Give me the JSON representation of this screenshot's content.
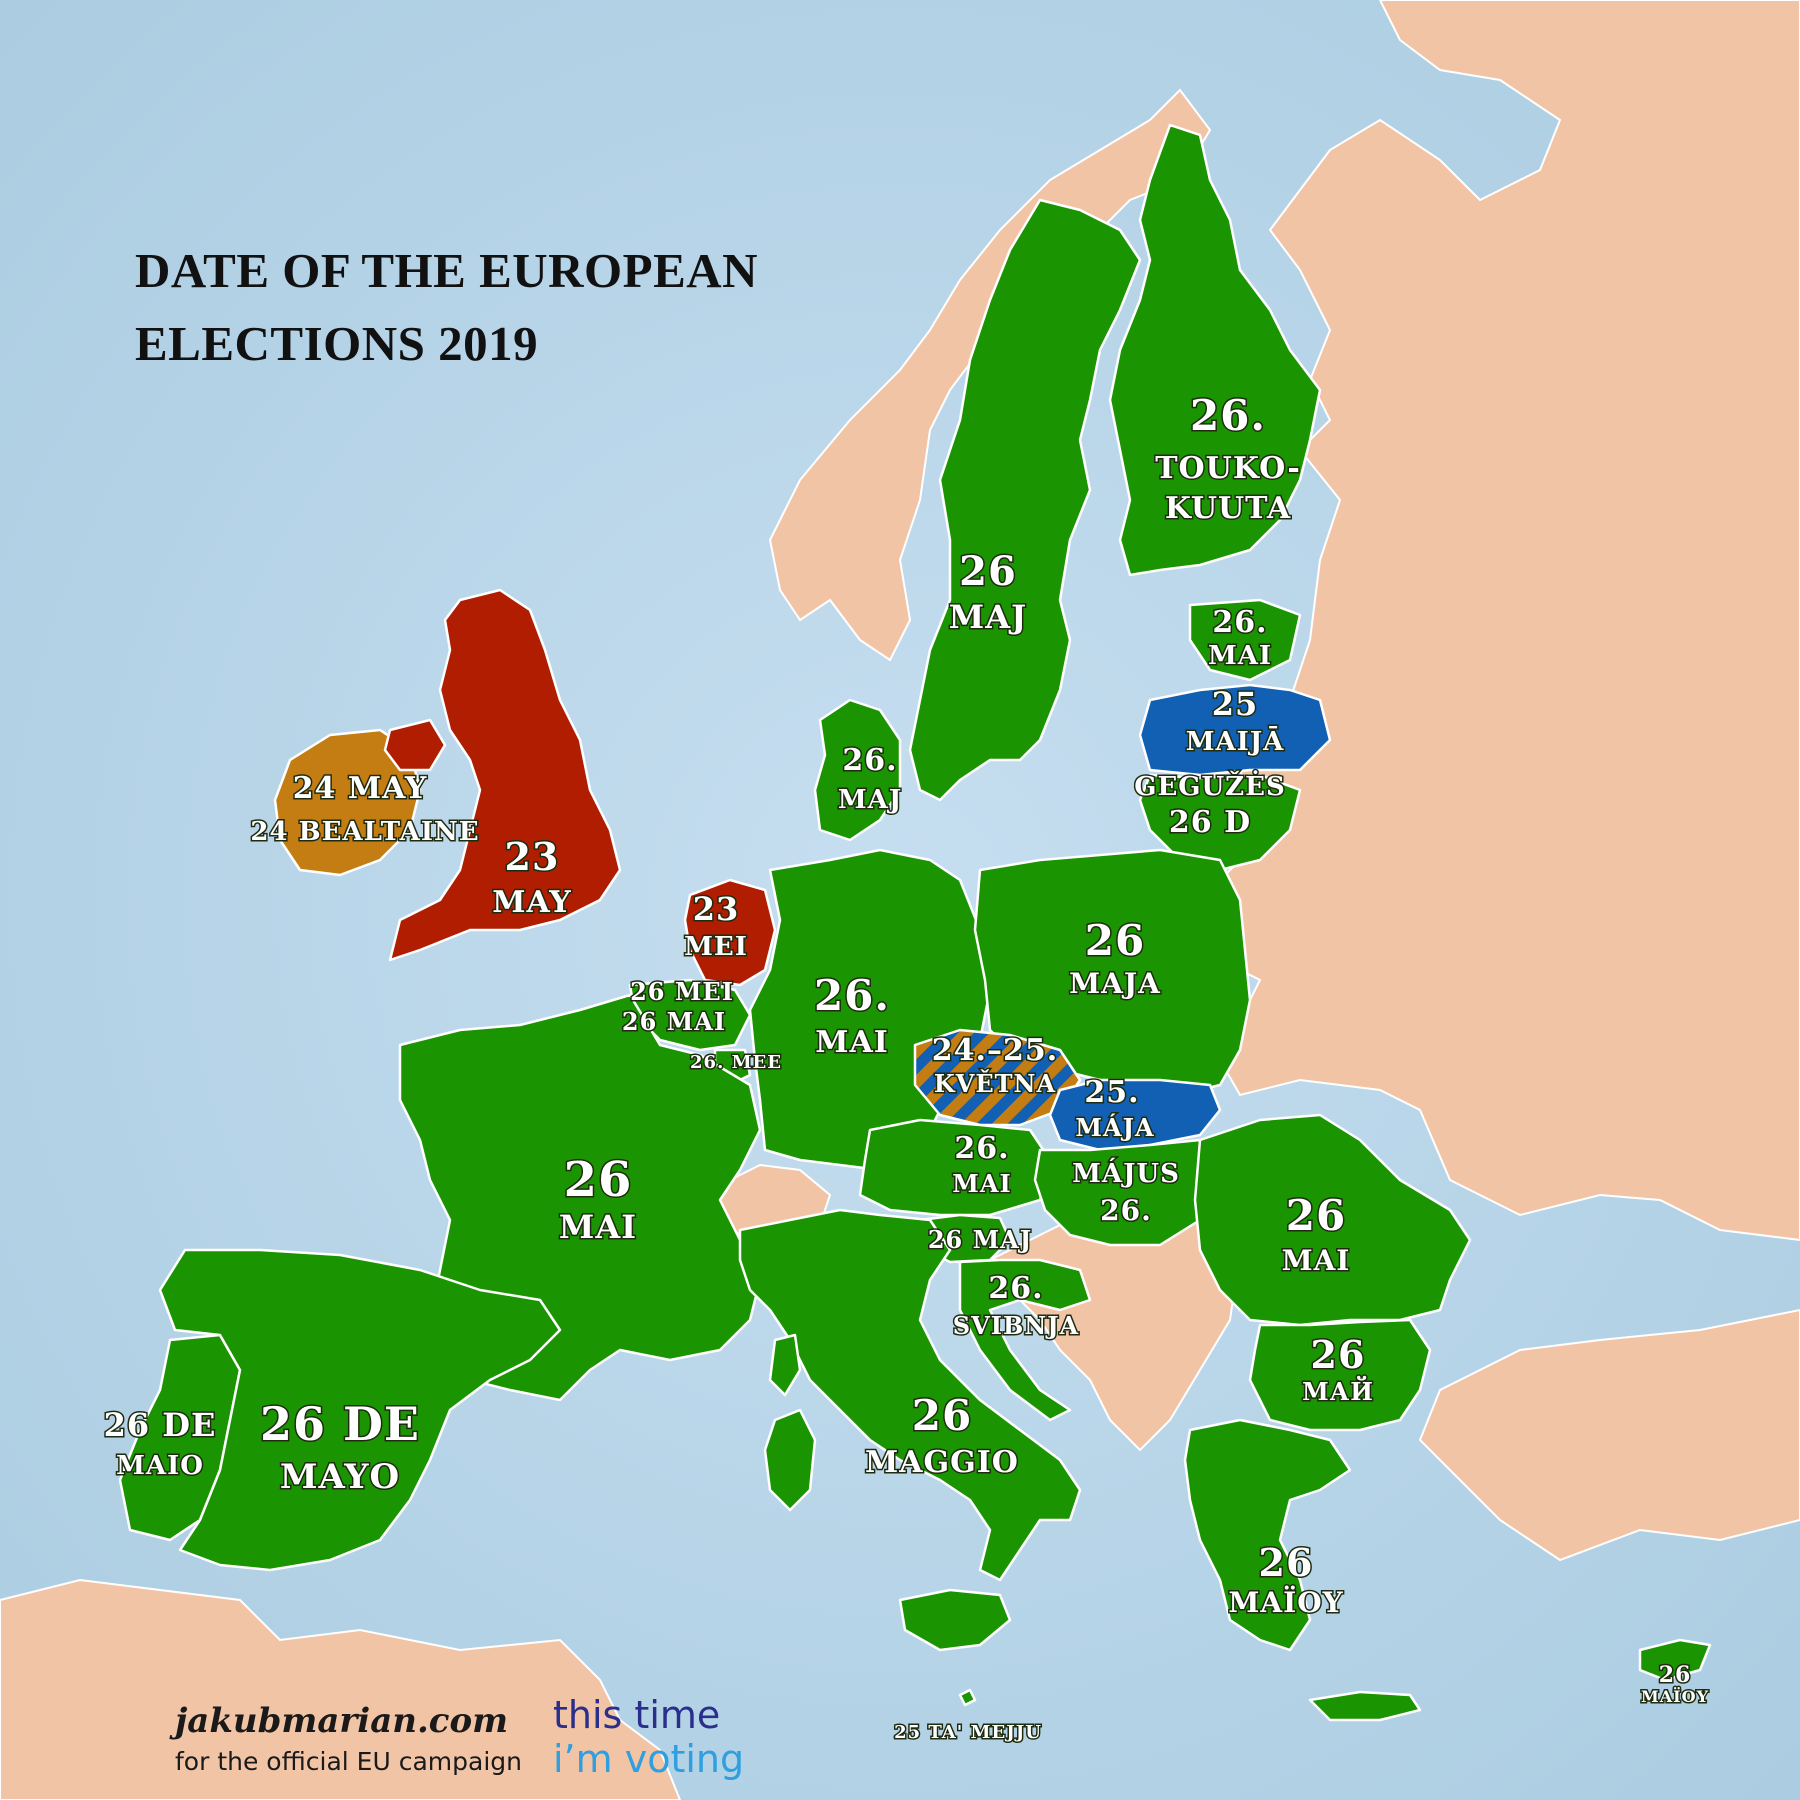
{
  "title": {
    "line1": "DATE OF THE EUROPEAN",
    "line2": "ELECTIONS 2019"
  },
  "colors": {
    "sea": "#b9d6e8",
    "non_eu_land": "#f2c4a6",
    "date_26": "#1a9400",
    "date_23": "#b01d00",
    "date_24": "#c47d12",
    "date_25": "#1160b3",
    "border": "#ffffff",
    "campaign_dark": "#2a2f8c",
    "campaign_light": "#2f9fe0"
  },
  "countries": {
    "finland": {
      "line1": "26.",
      "line2": "TOUKO-",
      "line3": "KUUTA"
    },
    "sweden": {
      "line1": "26",
      "line2": "MAJ"
    },
    "estonia": {
      "line1": "26.",
      "line2": "MAI"
    },
    "latvia": {
      "line1": "25",
      "line2": "MAIJĀ"
    },
    "lithuania": {
      "line1": "GEGUŽĖS",
      "line2": "26 D"
    },
    "denmark": {
      "line1": "26.",
      "line2": "MAJ"
    },
    "ireland": {
      "line1": "24 MAY",
      "line2": "24 BEALTAINE"
    },
    "uk": {
      "line1": "23",
      "line2": "MAY"
    },
    "netherlands": {
      "line1": "23",
      "line2": "MEI"
    },
    "belgium": {
      "line1": "26 MEI",
      "line2": "26 MAI"
    },
    "luxembourg": {
      "line1": "26. MEE"
    },
    "germany": {
      "line1": "26.",
      "line2": "MAI"
    },
    "poland": {
      "line1": "26",
      "line2": "MAJA"
    },
    "czechia": {
      "line1": "24.–25.",
      "line2": "KVĚTNA"
    },
    "slovakia": {
      "line1": "25.",
      "line2": "MÁJA"
    },
    "austria": {
      "line1": "26.",
      "line2": "MAI"
    },
    "hungary": {
      "line1": "MÁJUS",
      "line2": "26."
    },
    "slovenia": {
      "line1": "26 MAJ"
    },
    "croatia": {
      "line1": "26.",
      "line2": "SVIBNJA"
    },
    "romania": {
      "line1": "26",
      "line2": "MAI"
    },
    "bulgaria": {
      "line1": "26",
      "line2": "МАЙ"
    },
    "france": {
      "line1": "26",
      "line2": "MAI"
    },
    "portugal": {
      "line1": "26 DE",
      "line2": "MAIO"
    },
    "spain": {
      "line1": "26 DE",
      "line2": "MAYO"
    },
    "italy": {
      "line1": "26",
      "line2": "MAGGIO"
    },
    "greece": {
      "line1": "26",
      "line2": "ΜΑΪΟΥ"
    },
    "cyprus": {
      "line1": "26",
      "line2": "ΜΑΪΟΥ"
    },
    "malta": {
      "line1": "25 TA' MEJJU"
    }
  },
  "credits": {
    "site": "jakubmarian.com",
    "subtitle": "for the official EU campaign",
    "campaign_line1": "this time",
    "campaign_line2": "i’m voting"
  }
}
